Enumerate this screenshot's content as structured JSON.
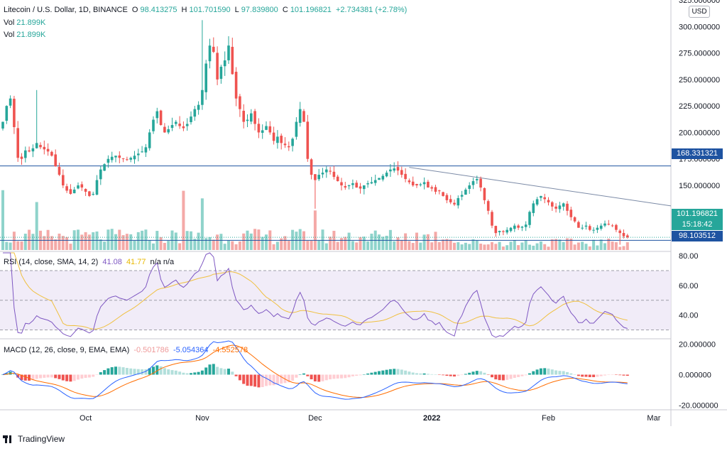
{
  "legend": {
    "symbol": "Litecoin / U.S. Dollar, 1D, BINANCE",
    "open_label": "O",
    "open": "98.413275",
    "high_label": "H",
    "high": "101.701590",
    "low_label": "L",
    "low": "97.839800",
    "close_label": "C",
    "close": "101.196821",
    "change": "+2.734381 (+2.78%)",
    "vol1_label": "Vol",
    "vol1": "21.899K",
    "vol2_label": "Vol",
    "vol2": "21.899K"
  },
  "currency": "USD",
  "price_tags": {
    "resistance": "168.331321",
    "last": "101.196821",
    "countdown": "15:18:42",
    "support": "98.103512"
  },
  "rsi_legend": {
    "label": "RSI (14, close, SMA, 14, 2)",
    "rsi": "41.08",
    "sma": "41.77",
    "extra": "n/a  n/a"
  },
  "macd_legend": {
    "label": "MACD (12, 26, close, 9, EMA, EMA)",
    "hist": "-0.501786",
    "macd": "-5.054364",
    "signal": "-4.552578"
  },
  "brand": "TradingView",
  "colors": {
    "up": "#26a69a",
    "down": "#ef5350",
    "rsi": "#7e57c2",
    "rsi_ma": "#f0c040",
    "macd": "#2962ff",
    "signal": "#ff6d00",
    "level": "#1e53a1"
  },
  "chart_data": [
    {
      "type": "candlestick",
      "series": "Litecoin / U.S. Dollar, 1D, BINANCE",
      "ylim": [
        89,
        325
      ],
      "yticks": [
        100,
        125,
        150,
        175,
        200,
        225,
        250,
        275,
        300,
        325
      ],
      "ytick_labels": [
        "",
        "125.000000",
        "150.000000",
        "175.000000",
        "200.000000",
        "225.000000",
        "250.000000",
        "275.000000",
        "300.000000",
        "325.000000"
      ],
      "x_labels": [
        "Oct",
        "Nov",
        "Dec",
        "2022",
        "Feb",
        "Mar"
      ],
      "x_label_index": [
        22,
        53,
        83,
        114,
        145,
        173
      ],
      "horizontal_levels": [
        168.33,
        98.1
      ],
      "trendline": {
        "from": {
          "i": 108,
          "price": 167
        },
        "to": {
          "i": 196,
          "price": 121
        }
      },
      "closes": [
        210,
        225,
        232,
        205,
        176,
        175,
        183,
        182,
        185,
        190,
        186,
        184,
        182,
        178,
        168,
        160,
        150,
        145,
        142,
        146,
        150,
        148,
        144,
        140,
        142,
        155,
        165,
        170,
        175,
        177,
        178,
        176,
        175,
        174,
        176,
        178,
        180,
        182,
        186,
        200,
        212,
        220,
        207,
        200,
        203,
        207,
        210,
        206,
        204,
        208,
        215,
        222,
        226,
        240,
        265,
        282,
        276,
        250,
        262,
        268,
        282,
        255,
        232,
        222,
        210,
        212,
        218,
        208,
        200,
        202,
        206,
        200,
        192,
        196,
        190,
        188,
        186,
        194,
        210,
        222,
        210,
        175,
        160,
        155,
        160,
        162,
        165,
        163,
        158,
        154,
        150,
        148,
        150,
        152,
        148,
        147,
        150,
        152,
        153,
        155,
        157,
        159,
        162,
        165,
        166,
        164,
        160,
        156,
        153,
        150,
        150,
        151,
        153,
        148,
        147,
        144,
        145,
        140,
        136,
        134,
        132,
        138,
        141,
        146,
        150,
        154,
        156,
        148,
        136,
        126,
        112,
        105,
        107,
        106,
        108,
        110,
        112,
        110,
        111,
        113,
        125,
        133,
        137,
        140,
        137,
        134,
        130,
        128,
        131,
        133,
        126,
        120,
        116,
        110,
        110,
        112,
        108,
        108,
        110,
        112,
        114,
        113,
        112,
        108,
        105,
        102,
        101
      ]
    },
    {
      "type": "bar",
      "series": "Vol",
      "note": "volume histogram, relative heights only"
    },
    {
      "type": "line",
      "series": [
        "RSI",
        "RSI-based MA"
      ],
      "ylim": [
        25,
        82
      ],
      "yticks": [
        40,
        60,
        80
      ],
      "ytick_labels": [
        "40.00",
        "60.00",
        "80.00"
      ],
      "bands": [
        30,
        50,
        70
      ]
    },
    {
      "type": "line",
      "series": [
        "MACD",
        "Signal",
        "Histogram"
      ],
      "ylim": [
        -22,
        22
      ],
      "yticks": [
        -20,
        0,
        20
      ],
      "ytick_labels": [
        "-20.000000",
        "0.000000",
        "20.000000"
      ]
    }
  ]
}
